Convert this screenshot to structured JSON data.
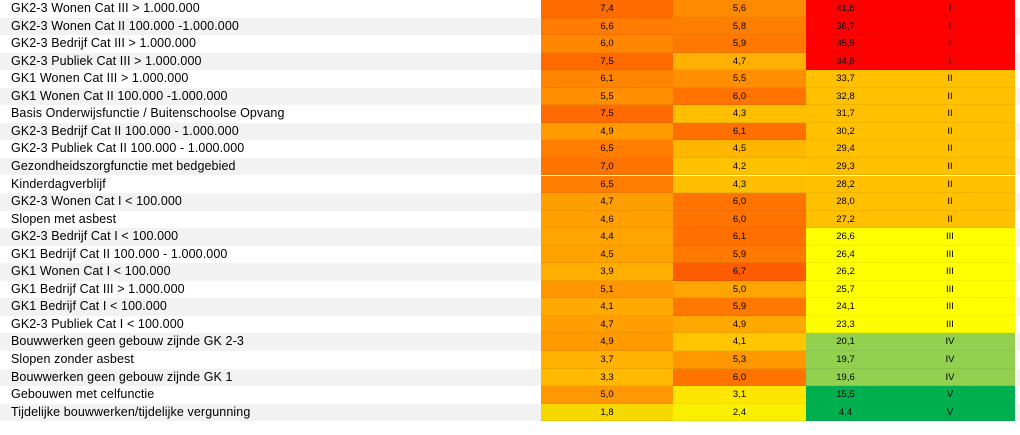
{
  "colors": {
    "red": "#ff0000",
    "orange": "#ffc000",
    "yellow": "#ffff00",
    "light_green": "#92d050",
    "green": "#00b050",
    "zebra": "#f2f2f2"
  },
  "rows": [
    {
      "label": "GK2-3 Wonen Cat III > 1.000.000",
      "v1": "7,4",
      "v1_color": "#fe6c00",
      "v2": "5,6",
      "v2_color": "#fe8a00",
      "score": "41,8",
      "cls": "I",
      "cls_color": "#ff0000"
    },
    {
      "label": "GK2-3 Wonen Cat II 100.000 -1.000.000",
      "v1": "6,6",
      "v1_color": "#ff7c00",
      "v2": "5,8",
      "v2_color": "#fe7e00",
      "score": "38,7",
      "cls": "I",
      "cls_color": "#ff0000"
    },
    {
      "label": "GK2-3 Bedrijf Cat III > 1.000.000",
      "v1": "6,0",
      "v1_color": "#ff8600",
      "v2": "5,9",
      "v2_color": "#ff7800",
      "score": "35,5",
      "cls": "I",
      "cls_color": "#ff0000"
    },
    {
      "label": "GK2-3 Publiek Cat III > 1.000.000",
      "v1": "7,5",
      "v1_color": "#fe6a00",
      "v2": "4,7",
      "v2_color": "#ffb000",
      "score": "34,8",
      "cls": "I",
      "cls_color": "#ff0000"
    },
    {
      "label": "GK1 Wonen Cat III > 1.000.000",
      "v1": "6,1",
      "v1_color": "#ff8400",
      "v2": "5,5",
      "v2_color": "#ff8e00",
      "score": "33,7",
      "cls": "II",
      "cls_color": "#ffc000"
    },
    {
      "label": "GK1 Wonen Cat II 100.000 -1.000.000",
      "v1": "5,5",
      "v1_color": "#ff8e00",
      "v2": "6,0",
      "v2_color": "#ff7400",
      "score": "32,8",
      "cls": "II",
      "cls_color": "#ffc000"
    },
    {
      "label": "Basis Onderwijsfunctie / Buitenschoolse Opvang",
      "v1": "7,5",
      "v1_color": "#fe6a00",
      "v2": "4,3",
      "v2_color": "#ffbe00",
      "score": "31,7",
      "cls": "II",
      "cls_color": "#ffc000"
    },
    {
      "label": "GK2-3 Bedrijf Cat II 100.000 - 1.000.000",
      "v1": "4,9",
      "v1_color": "#ff9a00",
      "v2": "6,1",
      "v2_color": "#ff7000",
      "score": "30,2",
      "cls": "II",
      "cls_color": "#ffc000"
    },
    {
      "label": "GK2-3 Publiek Cat II 100.000 - 1.000.000",
      "v1": "6,5",
      "v1_color": "#ff7e00",
      "v2": "4,5",
      "v2_color": "#ffb600",
      "score": "29,4",
      "cls": "II",
      "cls_color": "#ffc000"
    },
    {
      "label": "Gezondheidszorgfunctie met bedgebied",
      "v1": "7,0",
      "v1_color": "#ff7400",
      "v2": "4,2",
      "v2_color": "#ffc200",
      "score": "29,3",
      "cls": "II",
      "cls_color": "#ffc000"
    },
    {
      "label": "Kinderdagverblijf",
      "v1": "6,5",
      "v1_color": "#ff7e00",
      "v2": "4,3",
      "v2_color": "#ffbe00",
      "score": "28,2",
      "cls": "II",
      "cls_color": "#ffc000"
    },
    {
      "label": "GK2-3 Wonen Cat I < 100.000",
      "v1": "4,7",
      "v1_color": "#ff9e00",
      "v2": "6,0",
      "v2_color": "#ff7400",
      "score": "28,0",
      "cls": "II",
      "cls_color": "#ffc000"
    },
    {
      "label": "Slopen met asbest",
      "v1": "4,6",
      "v1_color": "#ffa000",
      "v2": "6,0",
      "v2_color": "#ff7400",
      "score": "27,2",
      "cls": "II",
      "cls_color": "#ffc000"
    },
    {
      "label": "GK2-3 Bedrijf Cat I < 100.000",
      "v1": "4,4",
      "v1_color": "#ffa400",
      "v2": "6,1",
      "v2_color": "#ff7000",
      "score": "26,6",
      "cls": "III",
      "cls_color": "#ffff00"
    },
    {
      "label": "GK1 Bedrijf Cat II 100.000 - 1.000.000",
      "v1": "4,5",
      "v1_color": "#ffa200",
      "v2": "5,9",
      "v2_color": "#ff7800",
      "score": "26,4",
      "cls": "III",
      "cls_color": "#ffff00"
    },
    {
      "label": "GK1 Wonen Cat I < 100.000",
      "v1": "3,9",
      "v1_color": "#ffae00",
      "v2": "6,7",
      "v2_color": "#fe5c00",
      "score": "26,2",
      "cls": "III",
      "cls_color": "#ffff00"
    },
    {
      "label": "GK1 Bedrijf Cat III > 1.000.000",
      "v1": "5,1",
      "v1_color": "#ff9600",
      "v2": "5,0",
      "v2_color": "#ffa400",
      "score": "25,7",
      "cls": "III",
      "cls_color": "#ffff00"
    },
    {
      "label": "GK1 Bedrijf Cat I < 100.000",
      "v1": "4,1",
      "v1_color": "#ffaa00",
      "v2": "5,9",
      "v2_color": "#ff7800",
      "score": "24,1",
      "cls": "III",
      "cls_color": "#ffff00"
    },
    {
      "label": "GK2-3 Publiek Cat I < 100.000",
      "v1": "4,7",
      "v1_color": "#ff9e00",
      "v2": "4,9",
      "v2_color": "#ffa800",
      "score": "23,3",
      "cls": "III",
      "cls_color": "#ffff00"
    },
    {
      "label": "Bouwwerken geen gebouw zijnde GK 2-3",
      "v1": "4,9",
      "v1_color": "#ff9a00",
      "v2": "4,1",
      "v2_color": "#ffc600",
      "score": "20,1",
      "cls": "IV",
      "cls_color": "#92d050"
    },
    {
      "label": "Slopen zonder asbest",
      "v1": "3,7",
      "v1_color": "#ffb200",
      "v2": "5,3",
      "v2_color": "#ff9800",
      "score": "19,7",
      "cls": "IV",
      "cls_color": "#92d050"
    },
    {
      "label": "Bouwwerken geen gebouw zijnde GK 1",
      "v1": "3,3",
      "v1_color": "#ffba00",
      "v2": "6,0",
      "v2_color": "#ff7400",
      "score": "19,6",
      "cls": "IV",
      "cls_color": "#92d050"
    },
    {
      "label": "Gebouwen met celfunctie",
      "v1": "5,0",
      "v1_color": "#ff9800",
      "v2": "3,1",
      "v2_color": "#ffe600",
      "score": "15,5",
      "cls": "V",
      "cls_color": "#00b050"
    },
    {
      "label": "Tijdelijke bouwwerken/tijdelijke vergunning",
      "v1": "1,8",
      "v1_color": "#f4d800",
      "v2": "2,4",
      "v2_color": "#f8f000",
      "score": "4,4",
      "cls": "V",
      "cls_color": "#00b050"
    }
  ]
}
